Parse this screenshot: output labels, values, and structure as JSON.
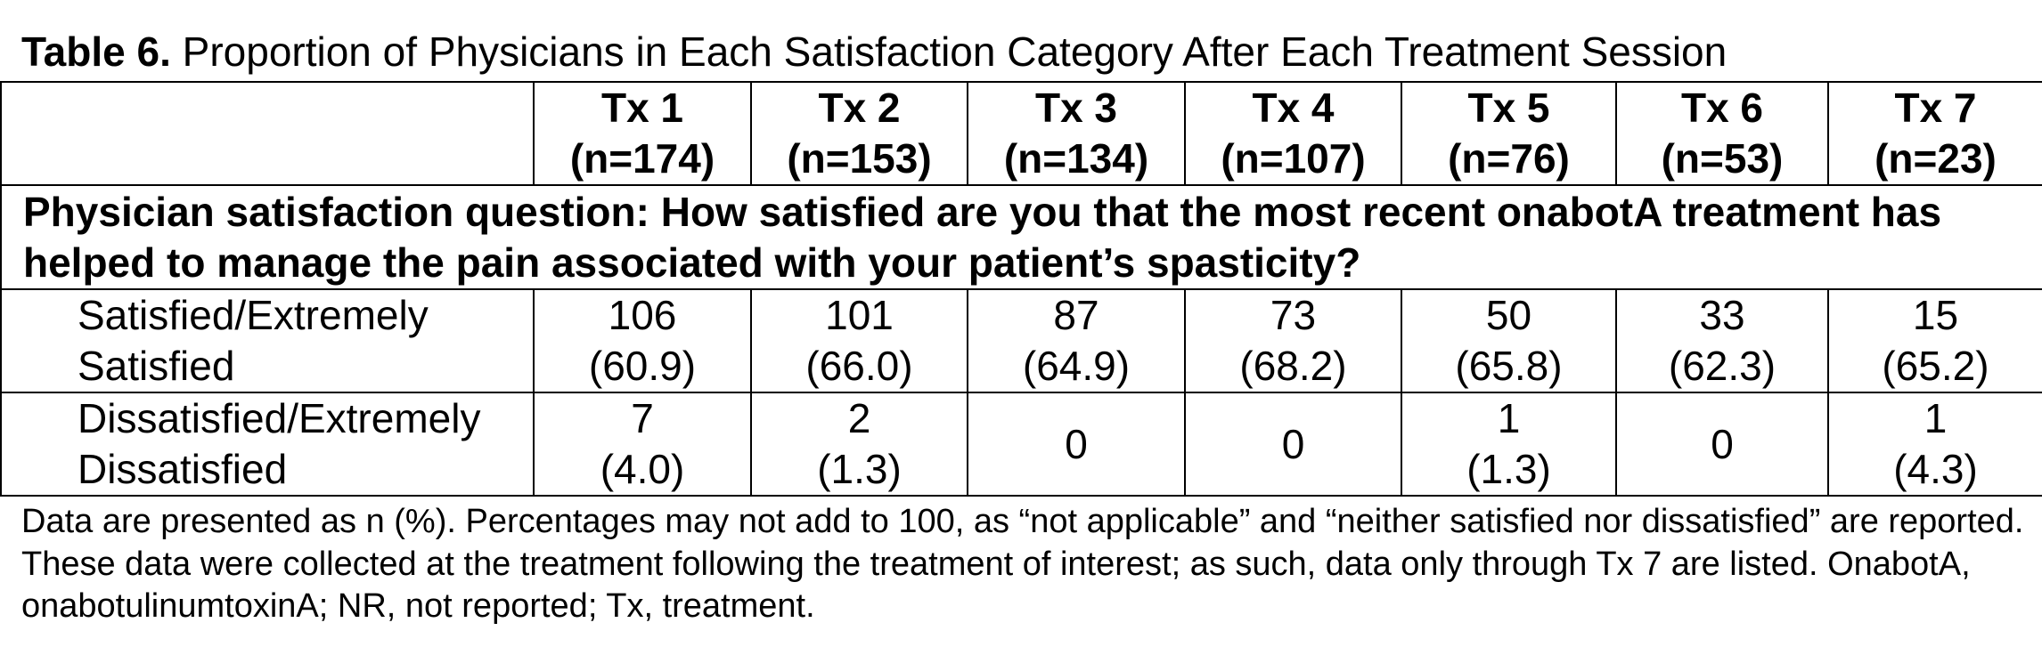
{
  "title": {
    "label": "Table 6.",
    "text": "Proportion of Physicians in Each Satisfaction Category After Each Treatment Session"
  },
  "table": {
    "columns": [
      [
        "Tx 1",
        "(n=174)"
      ],
      [
        "Tx 2",
        "(n=153)"
      ],
      [
        "Tx 3",
        "(n=134)"
      ],
      [
        "Tx 4",
        "(n=107)"
      ],
      [
        "Tx 5",
        "(n=76)"
      ],
      [
        "Tx 6",
        "(n=53)"
      ],
      [
        "Tx 7",
        "(n=23)"
      ]
    ],
    "question": "Physician satisfaction question: How satisfied are you that the most recent onabotA treatment has helped to manage the pain associated with your patient’s spasticity?",
    "rows": [
      {
        "label": [
          "Satisfied/Extremely",
          "Satisfied"
        ],
        "cells": [
          [
            "106",
            "(60.9)"
          ],
          [
            "101",
            "(66.0)"
          ],
          [
            "87",
            "(64.9)"
          ],
          [
            "73",
            "(68.2)"
          ],
          [
            "50",
            "(65.8)"
          ],
          [
            "33",
            "(62.3)"
          ],
          [
            "15",
            "(65.2)"
          ]
        ]
      },
      {
        "label": [
          "Dissatisfied/Extremely",
          "Dissatisfied"
        ],
        "cells": [
          [
            "7",
            "(4.0)"
          ],
          [
            "2",
            "(1.3)"
          ],
          [
            "0"
          ],
          [
            "0"
          ],
          [
            "1",
            "(1.3)"
          ],
          [
            "0"
          ],
          [
            "1",
            "(4.3)"
          ]
        ]
      }
    ]
  },
  "footnote": "Data are presented as n (%). Percentages may not add to 100, as “not applicable” and “neither satisfied nor dissatisfied” are reported. These data were collected at the treatment following the treatment of interest; as such, data only through Tx 7 are listed. OnabotA, onabotulinumtoxinA; NR, not reported; Tx, treatment."
}
